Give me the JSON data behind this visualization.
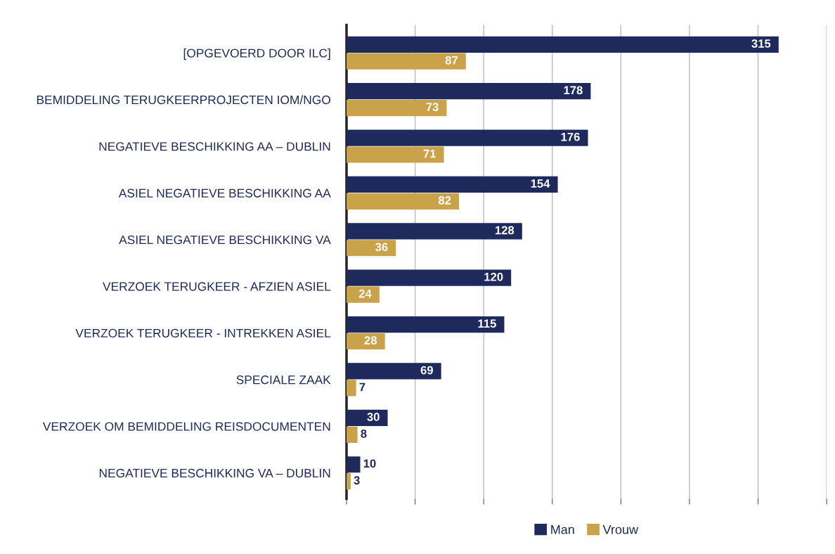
{
  "chart_data": {
    "type": "bar",
    "orientation": "horizontal",
    "categories": [
      "[OPGEVOERD DOOR ILC]",
      "BEMIDDELING TERUGKEERPROJECTEN IOM/NGO",
      "NEGATIEVE BESCHIKKING AA – DUBLIN",
      "ASIEL NEGATIEVE BESCHIKKING AA",
      "ASIEL NEGATIEVE BESCHIKKING VA",
      "VERZOEK TERUGKEER - AFZIEN ASIEL",
      "VERZOEK TERUGKEER - INTREKKEN ASIEL",
      "SPECIALE ZAAK",
      "VERZOEK OM BEMIDDELING REISDOCUMENTEN",
      "NEGATIEVE BESCHIKKING VA – DUBLIN"
    ],
    "series": [
      {
        "name": "Man",
        "color": "#1f2a5c",
        "values": [
          315,
          178,
          176,
          154,
          128,
          120,
          115,
          69,
          30,
          10
        ]
      },
      {
        "name": "Vrouw",
        "color": "#c9a24a",
        "values": [
          87,
          73,
          71,
          82,
          36,
          24,
          28,
          7,
          8,
          3
        ]
      }
    ],
    "xlim": [
      0,
      350
    ],
    "xticks": [
      {
        "value": 0,
        "label": null
      },
      {
        "value": 50,
        "label": null
      },
      {
        "value": 100,
        "label": null
      },
      {
        "value": 150,
        "label": null
      },
      {
        "value": 200,
        "label": null
      },
      {
        "value": 250,
        "label": null
      },
      {
        "value": 300,
        "label": null
      },
      {
        "value": 350,
        "label": null
      }
    ],
    "grid": "x",
    "legend": "bottom",
    "data_labels": true
  }
}
